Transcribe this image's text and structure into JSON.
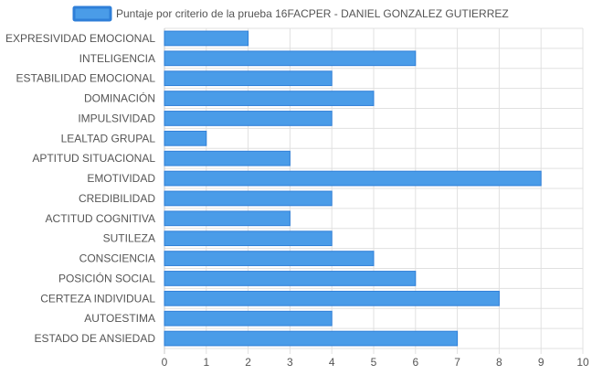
{
  "chart_data": {
    "type": "bar",
    "orientation": "horizontal",
    "title": "",
    "legend": {
      "position": "top",
      "entries": [
        "Puntaje por criterio de la prueba 16FACPER - DANIEL GONZALEZ GUTIERREZ"
      ]
    },
    "categories": [
      "EXPRESIVIDAD EMOCIONAL",
      "INTELIGENCIA",
      "ESTABILIDAD EMOCIONAL",
      "DOMINACIÓN",
      "IMPULSIVIDAD",
      "LEALTAD GRUPAL",
      "APTITUD SITUACIONAL",
      "EMOTIVIDAD",
      "CREDIBILIDAD",
      "ACTITUD COGNITIVA",
      "SUTILEZA",
      "CONSCIENCIA",
      "POSICIÓN SOCIAL",
      "CERTEZA INDIVIDUAL",
      "AUTOESTIMA",
      "ESTADO DE ANSIEDAD"
    ],
    "series": [
      {
        "name": "Puntaje por criterio de la prueba 16FACPER - DANIEL GONZALEZ GUTIERREZ",
        "values": [
          2,
          6,
          4,
          5,
          4,
          1,
          3,
          9,
          4,
          3,
          4,
          5,
          6,
          8,
          4,
          7
        ]
      }
    ],
    "xlim": [
      0,
      10
    ],
    "xticks": [
      "0",
      "1",
      "2",
      "3",
      "4",
      "5",
      "6",
      "7",
      "8",
      "9",
      "10"
    ],
    "grid": true,
    "colors": {
      "bar_fill": "#4a9ce8",
      "bar_stroke": "#2f7fd8",
      "grid": "#e0e0e0",
      "axis": "#c8c8c8"
    }
  }
}
